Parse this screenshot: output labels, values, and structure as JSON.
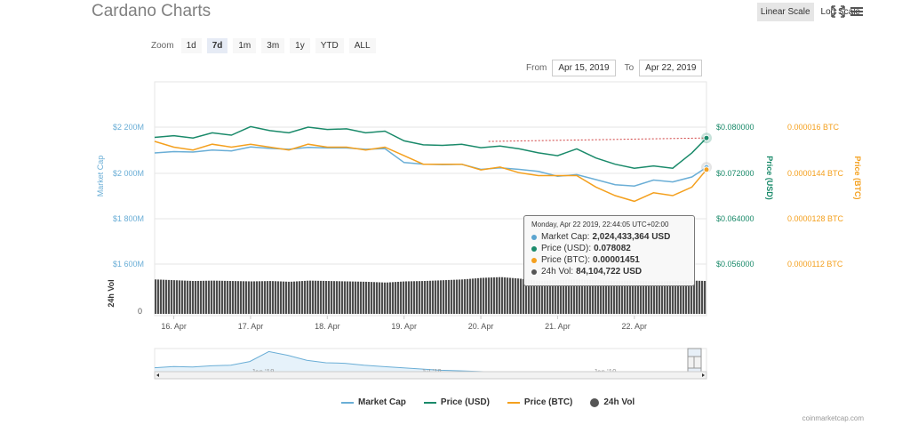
{
  "title": "Cardano Charts",
  "top_buttons": {
    "linear": "Linear Scale",
    "log": "Log Scale"
  },
  "zoom": {
    "label": "Zoom",
    "options": [
      "1d",
      "7d",
      "1m",
      "3m",
      "1y",
      "YTD",
      "ALL"
    ],
    "active": "7d"
  },
  "range": {
    "from_label": "From",
    "from": "Apr 15, 2019",
    "to_label": "To",
    "to": "Apr 22, 2019"
  },
  "tooltip": {
    "header": "Monday, Apr 22 2019, 22:44:05 UTC+02:00",
    "rows": [
      {
        "label": "Market Cap:",
        "value": "2,024,433,364 USD",
        "color": "#5ba4cf"
      },
      {
        "label": "Price (USD):",
        "value": "0.078082",
        "color": "#1a8a6a"
      },
      {
        "label": "Price (BTC):",
        "value": "0.00001451",
        "color": "#f4a01e"
      },
      {
        "label": "24h Vol:",
        "value": "84,104,722 USD",
        "color": "#555555"
      }
    ]
  },
  "legend": [
    "Market Cap",
    "Price (USD)",
    "Price (BTC)",
    "24h Vol"
  ],
  "credit": "coinmarketcap.com",
  "colors": {
    "market_cap": "#6aaed6",
    "price_usd": "#1a8a6a",
    "price_btc": "#f4a01e",
    "volume": "#4d4d4d"
  },
  "chart_data": {
    "type": "line",
    "axis_labels": {
      "left": "Market Cap",
      "right_usd": "Price (USD)",
      "right_btc": "Price (BTC)",
      "volume": "24h Vol"
    },
    "left_ticks": [
      "$2 200M",
      "$2 000M",
      "$1 800M",
      "$1 600M"
    ],
    "usd_ticks": [
      "$0.080000",
      "$0.072000",
      "$0.064000",
      "$0.056000"
    ],
    "btc_ticks": [
      "0.000016 BTC",
      "0.0000144 BTC",
      "0.0000128 BTC",
      "0.0000112 BTC"
    ],
    "vol_tick": "0",
    "x_ticks": [
      "16. Apr",
      "17. Apr",
      "18. Apr",
      "19. Apr",
      "20. Apr",
      "21. Apr",
      "22. Apr"
    ],
    "navigator_labels": [
      "Jan '18",
      "Jul '18",
      "Jan '19"
    ],
    "ylim_usd": [
      0.056,
      0.08
    ],
    "ylim_marketcap": [
      1600,
      2200
    ],
    "ylim_btc": [
      1.12e-05,
      1.6e-05
    ],
    "x": [
      15.75,
      16,
      16.25,
      16.5,
      16.75,
      17,
      17.25,
      17.5,
      17.75,
      18,
      18.25,
      18.5,
      18.75,
      19,
      19.25,
      19.5,
      19.75,
      20,
      20.25,
      20.5,
      20.75,
      21,
      21.25,
      21.5,
      21.75,
      22,
      22.25,
      22.5,
      22.75,
      22.94
    ],
    "series": [
      {
        "name": "Price (USD)",
        "axis": "usd",
        "values": [
          0.0782,
          0.0785,
          0.0781,
          0.079,
          0.0786,
          0.0801,
          0.0794,
          0.079,
          0.08,
          0.0796,
          0.0797,
          0.079,
          0.0793,
          0.0776,
          0.0769,
          0.0768,
          0.077,
          0.0764,
          0.0767,
          0.0762,
          0.0755,
          0.075,
          0.0762,
          0.0746,
          0.0735,
          0.0728,
          0.0732,
          0.0728,
          0.0755,
          0.0781
        ]
      },
      {
        "name": "Market Cap",
        "axis": "marketcap",
        "values": [
          2087,
          2093,
          2091,
          2100,
          2096,
          2113,
          2107,
          2103,
          2111,
          2109,
          2109,
          2103,
          2106,
          2045,
          2038,
          2036,
          2037,
          2015,
          2022,
          2015,
          2006,
          1985,
          1992,
          1970,
          1948,
          1942,
          1968,
          1960,
          1982,
          2024
        ]
      },
      {
        "name": "Price (BTC)",
        "axis": "btc",
        "values": [
          1.55e-05,
          1.53e-05,
          1.52e-05,
          1.54e-05,
          1.53e-05,
          1.54e-05,
          1.53e-05,
          1.52e-05,
          1.54e-05,
          1.53e-05,
          1.53e-05,
          1.52e-05,
          1.53e-05,
          1.5e-05,
          1.47e-05,
          1.47e-05,
          1.47e-05,
          1.45e-05,
          1.46e-05,
          1.44e-05,
          1.43e-05,
          1.43e-05,
          1.43e-05,
          1.39e-05,
          1.36e-05,
          1.34e-05,
          1.37e-05,
          1.36e-05,
          1.39e-05,
          1.451e-05
        ]
      },
      {
        "name": "24h Vol",
        "axis": "volume",
        "values": [
          88,
          86,
          84,
          85,
          84,
          83,
          84,
          82,
          85,
          84,
          83,
          82,
          80,
          83,
          84,
          86,
          88,
          92,
          94,
          90,
          84,
          86,
          88,
          86,
          84,
          85,
          83,
          84,
          85,
          84
        ]
      }
    ],
    "navigator_usd": [
      0.3,
      0.35,
      0.33,
      0.38,
      0.4,
      0.55,
      0.95,
      0.8,
      0.6,
      0.5,
      0.48,
      0.4,
      0.35,
      0.3,
      0.25,
      0.2,
      0.18,
      0.15,
      0.12,
      0.1,
      0.09,
      0.08,
      0.07,
      0.06,
      0.06,
      0.05,
      0.05,
      0.05,
      0.06,
      0.078
    ]
  }
}
